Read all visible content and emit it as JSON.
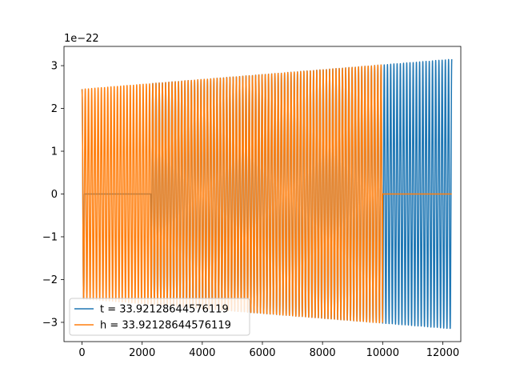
{
  "chart_data": {
    "type": "line",
    "title": "",
    "xlabel": "",
    "ylabel": "",
    "offset_text": "1e−22",
    "xlim": [
      -600,
      12600
    ],
    "ylim": [
      -3.45,
      3.45
    ],
    "x_ticks": [
      0,
      2000,
      4000,
      6000,
      8000,
      10000,
      12000
    ],
    "x_tick_labels": [
      "0",
      "2000",
      "4000",
      "6000",
      "8000",
      "10000",
      "12000"
    ],
    "y_ticks": [
      -3,
      -2,
      -1,
      0,
      1,
      2,
      3
    ],
    "y_tick_labels": [
      "−3",
      "−2",
      "−1",
      "0",
      "1",
      "2",
      "3"
    ],
    "grid": false,
    "legend_position": "lower-left",
    "series": [
      {
        "name": "t = 33.92128644576119",
        "color": "#1f77b4",
        "shape": "chirp with zero-padding at the start",
        "x_range": [
          0,
          12300
        ],
        "zero_until": 2300,
        "amplitude_start": 2.45,
        "amplitude_end": 3.15,
        "cycles": 115
      },
      {
        "name": "h = 33.92128644576119",
        "color": "#ff7f0e",
        "shape": "chirp with zero-padding at the end",
        "x_range": [
          0,
          12300
        ],
        "zero_from": 10000,
        "amplitude_start": 2.45,
        "amplitude_end": 3.15,
        "cycles": 115
      }
    ]
  }
}
